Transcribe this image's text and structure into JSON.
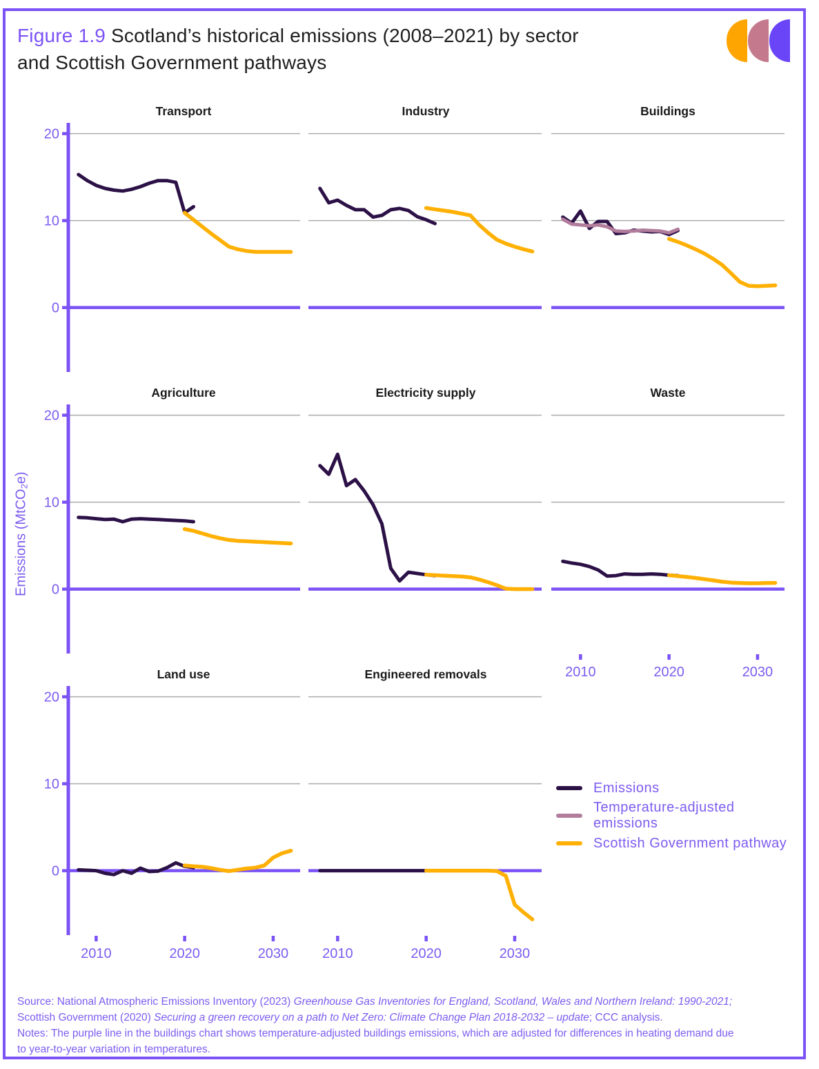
{
  "figure": {
    "label": "Figure 1.9",
    "title_rest": " Scotland’s historical emissions (2008–2021) by sector",
    "title_line2": "and Scottish Government pathways"
  },
  "colors": {
    "axis": "#7B52F5",
    "text": "#7C5CF0",
    "gridline": "#ABABAB",
    "emissions": "#2C1147",
    "temp_adjusted": "#B27D9C",
    "pathway": "#FFB005",
    "logo_orange": "#FFA502",
    "logo_mauve": "#C5798D",
    "logo_purple": "#6A45F7"
  },
  "logo": {
    "shapes": [
      "logo-crescent-orange",
      "logo-crescent-mauve",
      "logo-crescent-purple"
    ]
  },
  "ylabel": {
    "pre": "Emissions (MtCO",
    "sub": "2",
    "post": "e)"
  },
  "axis": {
    "yticks": [
      20,
      10,
      0
    ],
    "xticks": [
      2010,
      2020,
      2030
    ],
    "ylim": [
      -7.4,
      21.4
    ],
    "xlim": [
      2006.7,
      2033
    ],
    "grid": "horizontal gridlines at 10 and 20; purple zero line"
  },
  "legend": [
    {
      "label": "Emissions",
      "color_key": "emissions"
    },
    {
      "label": "Temperature-adjusted emissions",
      "color_key": "temp_adjusted"
    },
    {
      "label": "Scottish Government pathway",
      "color_key": "pathway"
    }
  ],
  "chart_data": [
    {
      "title": "Transport",
      "type": "line",
      "y_axis": true,
      "x_axis": false,
      "series": [
        {
          "name": "Emissions",
          "color_key": "emissions",
          "x": [
            2008,
            2009,
            2010,
            2011,
            2012,
            2013,
            2014,
            2015,
            2016,
            2017,
            2018,
            2019,
            2020,
            2021
          ],
          "y": [
            15.3,
            14.6,
            14.05,
            13.7,
            13.5,
            13.4,
            13.6,
            13.9,
            14.3,
            14.6,
            14.6,
            14.4,
            10.9,
            11.6
          ]
        },
        {
          "name": "Scottish Government pathway",
          "color_key": "pathway",
          "x": [
            2020,
            2021,
            2022,
            2023,
            2024,
            2025,
            2026,
            2027,
            2028,
            2029,
            2030,
            2031,
            2032
          ],
          "y": [
            10.9,
            10.1,
            9.3,
            8.5,
            7.75,
            7.0,
            6.7,
            6.5,
            6.4,
            6.4,
            6.4,
            6.4,
            6.4
          ]
        }
      ]
    },
    {
      "title": "Industry",
      "type": "line",
      "y_axis": false,
      "x_axis": false,
      "series": [
        {
          "name": "Emissions",
          "color_key": "emissions",
          "x": [
            2008,
            2009,
            2010,
            2011,
            2012,
            2013,
            2014,
            2015,
            2016,
            2017,
            2018,
            2019,
            2020,
            2021
          ],
          "y": [
            13.7,
            12.05,
            12.35,
            11.75,
            11.25,
            11.25,
            10.4,
            10.6,
            11.25,
            11.4,
            11.15,
            10.45,
            10.1,
            9.65
          ]
        },
        {
          "name": "Scottish Government pathway",
          "color_key": "pathway",
          "x": [
            2020,
            2021,
            2022,
            2023,
            2024,
            2025,
            2026,
            2027,
            2028,
            2029,
            2030,
            2031,
            2032
          ],
          "y": [
            11.45,
            11.3,
            11.15,
            11.0,
            10.8,
            10.6,
            9.5,
            8.6,
            7.8,
            7.35,
            7.0,
            6.7,
            6.45
          ]
        }
      ]
    },
    {
      "title": "Buildings",
      "type": "line",
      "y_axis": false,
      "x_axis": false,
      "series": [
        {
          "name": "Emissions",
          "color_key": "emissions",
          "x": [
            2008,
            2009,
            2010,
            2011,
            2012,
            2013,
            2014,
            2015,
            2016,
            2017,
            2018,
            2019,
            2020,
            2021
          ],
          "y": [
            10.4,
            9.7,
            11.1,
            9.1,
            9.9,
            9.9,
            8.5,
            8.6,
            8.9,
            8.8,
            8.7,
            8.75,
            8.4,
            8.85
          ]
        },
        {
          "name": "Temperature-adjusted emissions",
          "color_key": "temp_adjusted",
          "x": [
            2008,
            2009,
            2010,
            2011,
            2012,
            2013,
            2014,
            2015,
            2016,
            2017,
            2018,
            2019,
            2020,
            2021
          ],
          "y": [
            10.15,
            9.6,
            9.5,
            9.4,
            9.5,
            9.3,
            8.8,
            8.75,
            8.8,
            8.9,
            8.85,
            8.8,
            8.6,
            9.0
          ]
        },
        {
          "name": "Scottish Government pathway",
          "color_key": "pathway",
          "x": [
            2020,
            2021,
            2022,
            2023,
            2024,
            2025,
            2026,
            2027,
            2028,
            2029,
            2030,
            2031,
            2032
          ],
          "y": [
            7.9,
            7.55,
            7.15,
            6.7,
            6.2,
            5.6,
            4.9,
            3.95,
            2.95,
            2.5,
            2.45,
            2.5,
            2.55
          ]
        }
      ]
    },
    {
      "title": "Agriculture",
      "type": "line",
      "y_axis": true,
      "x_axis": false,
      "series": [
        {
          "name": "Emissions",
          "color_key": "emissions",
          "x": [
            2008,
            2009,
            2010,
            2011,
            2012,
            2013,
            2014,
            2015,
            2016,
            2017,
            2018,
            2019,
            2020,
            2021
          ],
          "y": [
            8.25,
            8.2,
            8.1,
            8.0,
            8.05,
            7.75,
            8.05,
            8.1,
            8.05,
            8.0,
            7.95,
            7.9,
            7.85,
            7.75
          ]
        },
        {
          "name": "Scottish Government pathway",
          "color_key": "pathway",
          "x": [
            2020,
            2021,
            2022,
            2023,
            2024,
            2025,
            2026,
            2027,
            2028,
            2029,
            2030,
            2031,
            2032
          ],
          "y": [
            6.9,
            6.7,
            6.4,
            6.1,
            5.85,
            5.65,
            5.55,
            5.5,
            5.45,
            5.4,
            5.35,
            5.3,
            5.25
          ]
        }
      ]
    },
    {
      "title": "Electricity supply",
      "type": "line",
      "y_axis": false,
      "x_axis": false,
      "series": [
        {
          "name": "Emissions",
          "color_key": "emissions",
          "x": [
            2008,
            2009,
            2010,
            2011,
            2012,
            2013,
            2014,
            2015,
            2016,
            2017,
            2018,
            2019,
            2020,
            2021
          ],
          "y": [
            14.2,
            13.2,
            15.5,
            11.9,
            12.6,
            11.3,
            9.7,
            7.5,
            2.4,
            0.95,
            1.95,
            1.8,
            1.65,
            1.55
          ]
        },
        {
          "name": "Scottish Government pathway",
          "color_key": "pathway",
          "x": [
            2020,
            2021,
            2022,
            2023,
            2024,
            2025,
            2026,
            2027,
            2028,
            2029,
            2030,
            2031,
            2032
          ],
          "y": [
            1.65,
            1.6,
            1.55,
            1.5,
            1.45,
            1.35,
            1.1,
            0.8,
            0.45,
            0.05,
            0.0,
            0.0,
            0.0
          ]
        }
      ]
    },
    {
      "title": "Waste",
      "type": "line",
      "y_axis": false,
      "x_axis": true,
      "series": [
        {
          "name": "Emissions",
          "color_key": "emissions",
          "x": [
            2008,
            2009,
            2010,
            2011,
            2012,
            2013,
            2014,
            2015,
            2016,
            2017,
            2018,
            2019,
            2020,
            2021
          ],
          "y": [
            3.2,
            3.0,
            2.85,
            2.6,
            2.2,
            1.5,
            1.55,
            1.75,
            1.7,
            1.7,
            1.75,
            1.7,
            1.6,
            1.55
          ]
        },
        {
          "name": "Scottish Government pathway",
          "color_key": "pathway",
          "x": [
            2020,
            2021,
            2022,
            2023,
            2024,
            2025,
            2026,
            2027,
            2028,
            2029,
            2030,
            2031,
            2032
          ],
          "y": [
            1.6,
            1.5,
            1.4,
            1.28,
            1.15,
            1.0,
            0.85,
            0.75,
            0.7,
            0.68,
            0.68,
            0.7,
            0.72
          ]
        }
      ]
    },
    {
      "title": "Land use",
      "type": "line",
      "y_axis": true,
      "x_axis": true,
      "series": [
        {
          "name": "Emissions",
          "color_key": "emissions",
          "x": [
            2008,
            2009,
            2010,
            2011,
            2012,
            2013,
            2014,
            2015,
            2016,
            2017,
            2018,
            2019,
            2020,
            2021
          ],
          "y": [
            0.1,
            0.05,
            0.0,
            -0.3,
            -0.45,
            0.0,
            -0.3,
            0.3,
            -0.1,
            -0.05,
            0.35,
            0.9,
            0.5,
            0.35
          ]
        },
        {
          "name": "Scottish Government pathway",
          "color_key": "pathway",
          "x": [
            2020,
            2021,
            2022,
            2023,
            2024,
            2025,
            2026,
            2027,
            2028,
            2029,
            2030,
            2031,
            2032
          ],
          "y": [
            0.6,
            0.5,
            0.45,
            0.3,
            0.1,
            -0.05,
            0.1,
            0.25,
            0.35,
            0.6,
            1.5,
            2.0,
            2.3
          ]
        }
      ]
    },
    {
      "title": "Engineered removals",
      "type": "line",
      "y_axis": false,
      "x_axis": true,
      "series": [
        {
          "name": "Emissions",
          "color_key": "emissions",
          "x": [
            2008,
            2009,
            2010,
            2011,
            2012,
            2013,
            2014,
            2015,
            2016,
            2017,
            2018,
            2019,
            2020
          ],
          "y": [
            0,
            0,
            0,
            0,
            0,
            0,
            0,
            0,
            0,
            0,
            0,
            0,
            0
          ]
        },
        {
          "name": "Scottish Government pathway",
          "color_key": "pathway",
          "x": [
            2020,
            2021,
            2022,
            2023,
            2024,
            2025,
            2026,
            2027,
            2028,
            2029,
            2030,
            2031,
            2032
          ],
          "y": [
            0,
            0,
            0,
            0,
            0,
            0,
            0,
            0,
            -0.05,
            -0.6,
            -3.9,
            -4.8,
            -5.6
          ]
        }
      ]
    }
  ],
  "footer": {
    "lines": [
      [
        {
          "t": "Source: National Atmospheric Emissions Inventory (2023) "
        },
        {
          "t": "Greenhouse Gas Inventories for England, Scotland, Wales and Northern Ireland: 1990-2021;",
          "i": true
        }
      ],
      [
        {
          "t": "Scottish Government (2020) "
        },
        {
          "t": "Securing a green recovery on a path to Net Zero: Climate Change Plan 2018-2032 – update",
          "i": true
        },
        {
          "t": "; CCC analysis."
        }
      ],
      [
        {
          "t": "Notes: The purple line in the buildings chart shows temperature-adjusted buildings emissions, which are adjusted for differences in heating demand due"
        }
      ],
      [
        {
          "t": "to year-to-year variation in temperatures."
        }
      ]
    ]
  }
}
